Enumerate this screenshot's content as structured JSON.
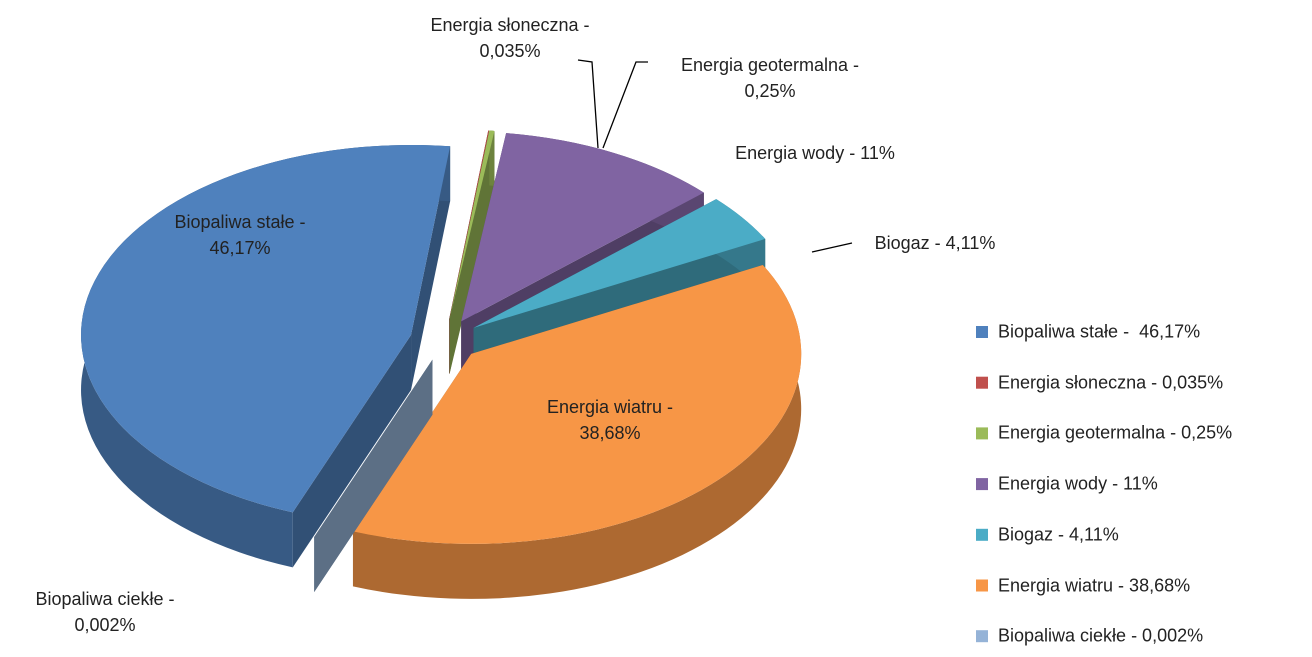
{
  "chart_data": {
    "type": "pie",
    "categories": [
      "Biopaliwa stałe -  46,17%",
      "Energia słoneczna - 0,035%",
      "Energia geotermalna - 0,25%",
      "Energia wody - 11%",
      "Biogaz - 4,11%",
      "Energia wiatru - 38,68%",
      "Biopaliwa ciekłe - 0,002%"
    ],
    "values": [
      46.17,
      0.035,
      0.25,
      11,
      4.11,
      38.68,
      0.002
    ],
    "value_labels": [
      "Biopaliwa stałe -\n46,17%",
      "Energia słoneczna -\n0,035%",
      "Energia geotermalna -\n0,25%",
      "Energia wody - 11%",
      "Biogaz - 4,11%",
      "Energia wiatru -\n38,68%",
      "Biopaliwa ciekłe -\n0,002%"
    ],
    "colors": [
      "#4F81BD",
      "#C0504D",
      "#9BBB59",
      "#8064A2",
      "#4BACC6",
      "#F79646",
      "#95B3D7"
    ],
    "legend": "right"
  }
}
